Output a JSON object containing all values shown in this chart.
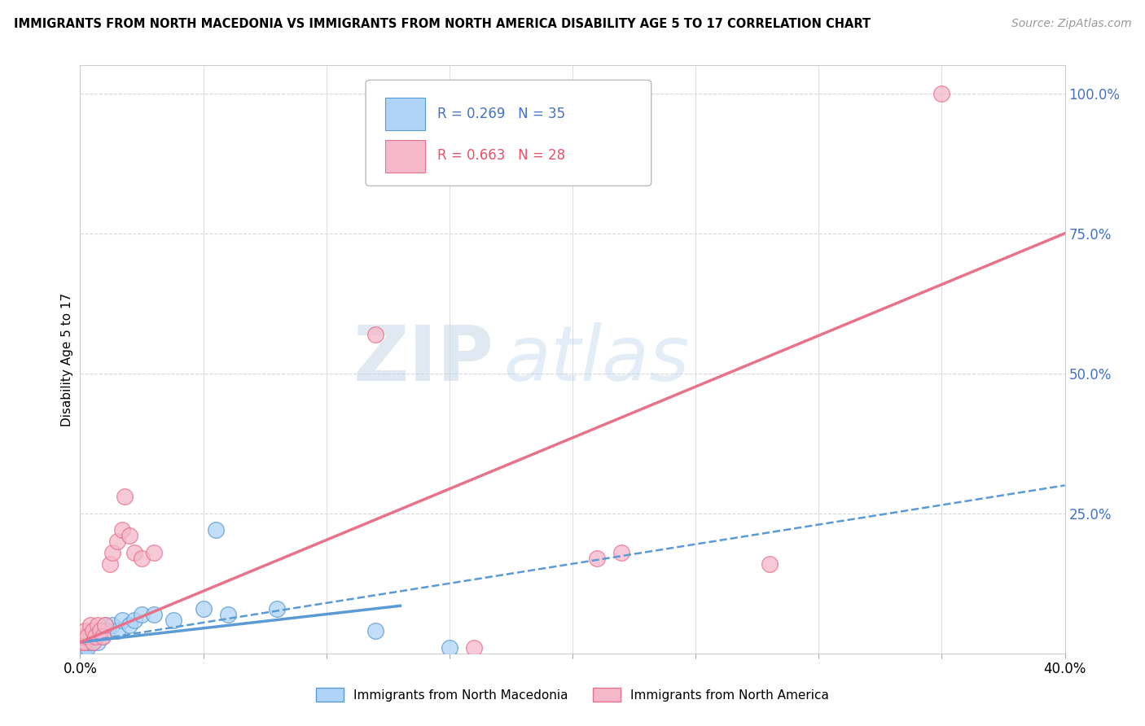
{
  "title": "IMMIGRANTS FROM NORTH MACEDONIA VS IMMIGRANTS FROM NORTH AMERICA DISABILITY AGE 5 TO 17 CORRELATION CHART",
  "source": "Source: ZipAtlas.com",
  "ylabel": "Disability Age 5 to 17",
  "xlim": [
    0.0,
    0.4
  ],
  "ylim": [
    0.0,
    1.05
  ],
  "xticks": [
    0.0,
    0.05,
    0.1,
    0.15,
    0.2,
    0.25,
    0.3,
    0.35,
    0.4
  ],
  "yticks_right": [
    0.0,
    0.25,
    0.5,
    0.75,
    1.0
  ],
  "yticklabels_right": [
    "",
    "25.0%",
    "50.0%",
    "75.0%",
    "100.0%"
  ],
  "legend_r1": "R = 0.269",
  "legend_n1": "N = 35",
  "legend_r2": "R = 0.663",
  "legend_n2": "N = 28",
  "color_blue": "#afd4f7",
  "color_pink": "#f5b8cb",
  "color_blue_dark": "#5b9bd5",
  "color_pink_dark": "#e8728a",
  "color_blue_line_text": "#4472c4",
  "color_pink_line_text": "#e8526a",
  "watermark_zip": "ZIP",
  "watermark_atlas": "atlas",
  "background_color": "#ffffff",
  "grid_color": "#d9d9d9",
  "blue_scatter_x": [
    0.001,
    0.001,
    0.002,
    0.002,
    0.002,
    0.003,
    0.003,
    0.003,
    0.004,
    0.004,
    0.004,
    0.005,
    0.005,
    0.006,
    0.006,
    0.007,
    0.007,
    0.008,
    0.009,
    0.01,
    0.011,
    0.013,
    0.015,
    0.017,
    0.02,
    0.022,
    0.025,
    0.03,
    0.038,
    0.05,
    0.055,
    0.06,
    0.08,
    0.12,
    0.15
  ],
  "blue_scatter_y": [
    0.01,
    0.02,
    0.01,
    0.02,
    0.03,
    0.01,
    0.02,
    0.03,
    0.02,
    0.03,
    0.04,
    0.02,
    0.03,
    0.03,
    0.04,
    0.02,
    0.04,
    0.04,
    0.03,
    0.05,
    0.04,
    0.05,
    0.04,
    0.06,
    0.05,
    0.06,
    0.07,
    0.07,
    0.06,
    0.08,
    0.22,
    0.07,
    0.08,
    0.04,
    0.01
  ],
  "pink_scatter_x": [
    0.001,
    0.001,
    0.002,
    0.002,
    0.003,
    0.004,
    0.005,
    0.005,
    0.006,
    0.007,
    0.008,
    0.009,
    0.01,
    0.012,
    0.013,
    0.015,
    0.017,
    0.018,
    0.02,
    0.022,
    0.025,
    0.03,
    0.12,
    0.16,
    0.21,
    0.22,
    0.28,
    0.35
  ],
  "pink_scatter_y": [
    0.02,
    0.03,
    0.02,
    0.04,
    0.03,
    0.05,
    0.02,
    0.04,
    0.03,
    0.05,
    0.04,
    0.03,
    0.05,
    0.16,
    0.18,
    0.2,
    0.22,
    0.28,
    0.21,
    0.18,
    0.17,
    0.18,
    0.57,
    0.01,
    0.17,
    0.18,
    0.16,
    1.0
  ],
  "blue_trend_x0": 0.0,
  "blue_trend_y0": 0.02,
  "blue_trend_x1": 0.4,
  "blue_trend_y1": 0.3,
  "pink_trend_x0": 0.0,
  "pink_trend_y0": 0.02,
  "pink_trend_x1": 0.4,
  "pink_trend_y1": 0.75
}
